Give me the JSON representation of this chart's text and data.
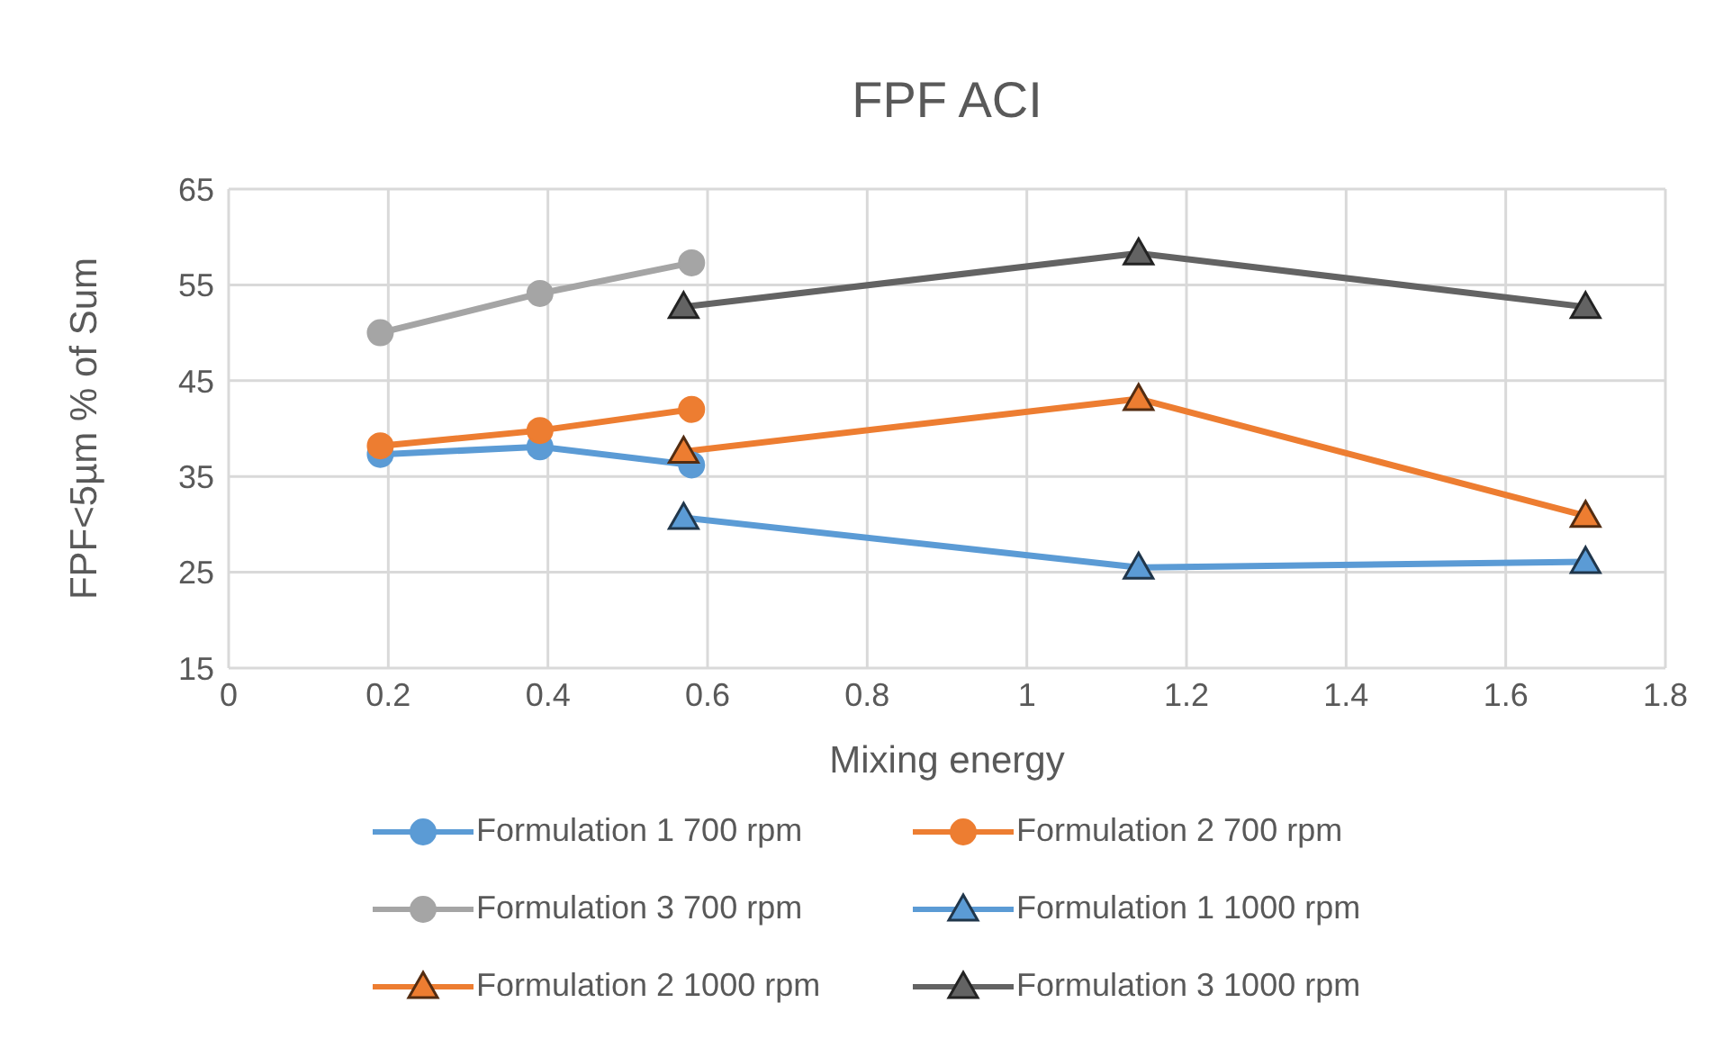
{
  "chart_data": {
    "type": "line",
    "title": "FPF ACI",
    "xlabel": "Mixing energy",
    "ylabel": "FPF<5µm % of Sum",
    "xlim": [
      0,
      1.8
    ],
    "xticks": [
      0,
      0.2,
      0.4,
      0.6,
      0.8,
      1,
      1.2,
      1.4,
      1.6,
      1.8
    ],
    "ylim": [
      15,
      65
    ],
    "yticks": [
      15,
      25,
      35,
      45,
      55,
      65
    ],
    "grid": true,
    "legend": "bottom",
    "series": [
      {
        "name": "Formulation 1 700 rpm",
        "color": "#5b9bd5",
        "marker": "circle",
        "x": [
          0.19,
          0.39,
          0.58
        ],
        "values": [
          37.3,
          38.1,
          36.2
        ]
      },
      {
        "name": "Formulation 2 700 rpm",
        "color": "#ed7d31",
        "marker": "circle",
        "x": [
          0.19,
          0.39,
          0.58
        ],
        "values": [
          38.2,
          39.8,
          42
        ]
      },
      {
        "name": "Formulation 3 700 rpm",
        "color": "#a5a5a5",
        "marker": "circle",
        "x": [
          0.19,
          0.39,
          0.58
        ],
        "values": [
          50,
          54.1,
          57.3
        ]
      },
      {
        "name": "Formulation 1 1000 rpm",
        "color": "#5b9bd5",
        "marker": "triangle",
        "x": [
          0.57,
          1.14,
          1.7
        ],
        "values": [
          30.7,
          25.5,
          26.1
        ]
      },
      {
        "name": "Formulation 2 1000 rpm",
        "color": "#ed7d31",
        "marker": "triangle",
        "x": [
          0.57,
          1.14,
          1.7
        ],
        "values": [
          37.6,
          43.1,
          30.9
        ]
      },
      {
        "name": "Formulation 3 1000 rpm",
        "color": "#636363",
        "marker": "triangle",
        "x": [
          0.57,
          1.14,
          1.7
        ],
        "values": [
          52.7,
          58.3,
          52.7
        ]
      }
    ]
  }
}
